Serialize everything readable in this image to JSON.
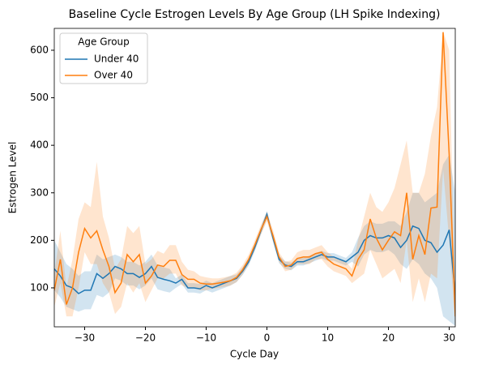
{
  "chart_data": {
    "type": "line",
    "title": "Baseline Cycle Estrogen Levels By Age Group (LH Spike Indexing)",
    "x_label": "Cycle Day",
    "y_label": "Estrogen Level",
    "x": [
      -35,
      -34,
      -33,
      -32,
      -31,
      -30,
      -29,
      -28,
      -27,
      -26,
      -25,
      -24,
      -23,
      -22,
      -21,
      -20,
      -19,
      -18,
      -17,
      -16,
      -15,
      -14,
      -13,
      -12,
      -11,
      -10,
      -9,
      -8,
      -7,
      -6,
      -5,
      -4,
      -3,
      -2,
      -1,
      0,
      1,
      2,
      3,
      4,
      5,
      6,
      7,
      8,
      9,
      10,
      11,
      12,
      13,
      14,
      15,
      16,
      17,
      18,
      19,
      20,
      21,
      22,
      23,
      24,
      25,
      26,
      27,
      28,
      29,
      30,
      31
    ],
    "series": [
      {
        "name": "Under 40",
        "color": "#1f77b4",
        "values": [
          140,
          125,
          105,
          100,
          88,
          95,
          95,
          130,
          120,
          130,
          145,
          140,
          130,
          130,
          122,
          130,
          145,
          122,
          118,
          115,
          110,
          118,
          100,
          100,
          98,
          105,
          100,
          105,
          110,
          115,
          120,
          135,
          155,
          185,
          220,
          255,
          205,
          160,
          148,
          145,
          155,
          155,
          160,
          165,
          170,
          165,
          165,
          160,
          155,
          165,
          175,
          200,
          210,
          205,
          205,
          210,
          205,
          185,
          200,
          230,
          225,
          200,
          195,
          175,
          190,
          222,
          85
        ],
        "ci_lower": [
          95,
          80,
          60,
          55,
          50,
          55,
          55,
          85,
          80,
          90,
          120,
          115,
          105,
          105,
          97,
          105,
          120,
          97,
          93,
          90,
          100,
          108,
          90,
          90,
          88,
          95,
          90,
          95,
          100,
          105,
          112,
          127,
          147,
          177,
          212,
          245,
          197,
          152,
          140,
          137,
          147,
          147,
          152,
          157,
          162,
          157,
          157,
          152,
          147,
          155,
          145,
          170,
          180,
          175,
          175,
          180,
          170,
          150,
          140,
          160,
          150,
          130,
          120,
          100,
          40,
          30,
          20
        ],
        "ci_upper": [
          200,
          175,
          150,
          140,
          125,
          135,
          135,
          170,
          160,
          165,
          170,
          165,
          155,
          155,
          147,
          155,
          170,
          147,
          143,
          140,
          120,
          128,
          110,
          110,
          108,
          115,
          110,
          115,
          120,
          125,
          128,
          143,
          163,
          193,
          228,
          262,
          213,
          168,
          156,
          153,
          163,
          163,
          168,
          173,
          178,
          173,
          173,
          168,
          163,
          175,
          205,
          230,
          240,
          235,
          235,
          240,
          240,
          230,
          260,
          300,
          300,
          280,
          290,
          300,
          360,
          380,
          300
        ]
      },
      {
        "name": "Over 40",
        "color": "#ff7f0e",
        "values": [
          95,
          160,
          65,
          100,
          175,
          225,
          205,
          220,
          180,
          145,
          90,
          110,
          170,
          155,
          170,
          110,
          125,
          148,
          145,
          158,
          158,
          128,
          118,
          118,
          110,
          108,
          108,
          110,
          112,
          115,
          122,
          138,
          160,
          190,
          222,
          250,
          210,
          165,
          145,
          148,
          162,
          165,
          165,
          172,
          175,
          160,
          150,
          145,
          140,
          125,
          160,
          180,
          245,
          205,
          180,
          200,
          218,
          210,
          300,
          160,
          210,
          170,
          268,
          270,
          638,
          380,
          40
        ],
        "ci_lower": [
          60,
          110,
          40,
          40,
          100,
          175,
          150,
          150,
          110,
          90,
          45,
          60,
          110,
          90,
          110,
          70,
          95,
          120,
          120,
          130,
          130,
          105,
          100,
          100,
          95,
          95,
          98,
          100,
          102,
          105,
          112,
          128,
          150,
          180,
          212,
          240,
          198,
          155,
          135,
          138,
          150,
          150,
          150,
          160,
          160,
          145,
          135,
          130,
          125,
          110,
          120,
          130,
          180,
          150,
          120,
          130,
          140,
          110,
          200,
          70,
          120,
          70,
          130,
          120,
          350,
          200,
          20
        ],
        "ci_upper": [
          130,
          220,
          100,
          160,
          245,
          280,
          270,
          365,
          250,
          205,
          140,
          160,
          230,
          215,
          230,
          150,
          160,
          178,
          172,
          190,
          190,
          155,
          138,
          135,
          125,
          122,
          120,
          120,
          122,
          125,
          132,
          148,
          170,
          200,
          232,
          260,
          222,
          175,
          155,
          158,
          175,
          180,
          180,
          185,
          190,
          175,
          165,
          160,
          155,
          140,
          200,
          250,
          300,
          270,
          260,
          280,
          310,
          360,
          410,
          300,
          300,
          340,
          420,
          480,
          640,
          600,
          60
        ]
      }
    ],
    "xlim": [
      -35,
      31
    ],
    "ylim": [
      18,
      646
    ],
    "xticks": [
      {
        "value": -30,
        "label": "−30"
      },
      {
        "value": -20,
        "label": "−20"
      },
      {
        "value": -10,
        "label": "−10"
      },
      0,
      10,
      20,
      30
    ],
    "yticks": [
      100,
      200,
      300,
      400,
      500,
      600
    ],
    "legend_title": "Age Group",
    "legend_position": "upper left",
    "grid": false
  }
}
